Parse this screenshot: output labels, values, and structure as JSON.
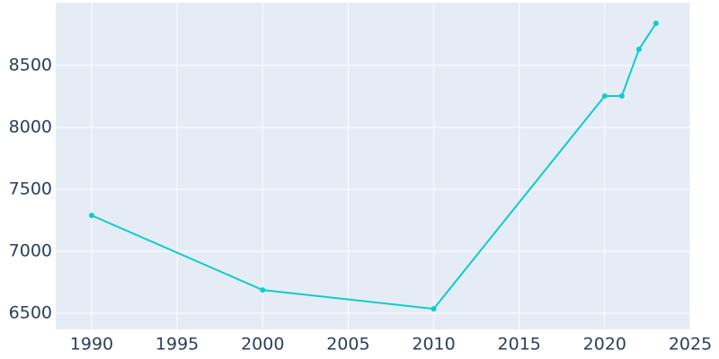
{
  "chart_data": {
    "type": "line",
    "x": [
      1990,
      2000,
      2010,
      2020,
      2021,
      2022,
      2023
    ],
    "series": [
      {
        "color": "#0fcccc",
        "values": [
          7290,
          6688,
          6536,
          8254,
          8254,
          8630,
          8840
        ]
      }
    ],
    "xlim": [
      1987.9,
      2025
    ],
    "xticks": [
      1990,
      1995,
      2000,
      2005,
      2010,
      2015,
      2020,
      2025
    ],
    "ylim": [
      6370,
      9007
    ],
    "yticks": [
      6500,
      7000,
      7500,
      8000,
      8500
    ],
    "grid": true,
    "background": "#e5ecf6"
  }
}
